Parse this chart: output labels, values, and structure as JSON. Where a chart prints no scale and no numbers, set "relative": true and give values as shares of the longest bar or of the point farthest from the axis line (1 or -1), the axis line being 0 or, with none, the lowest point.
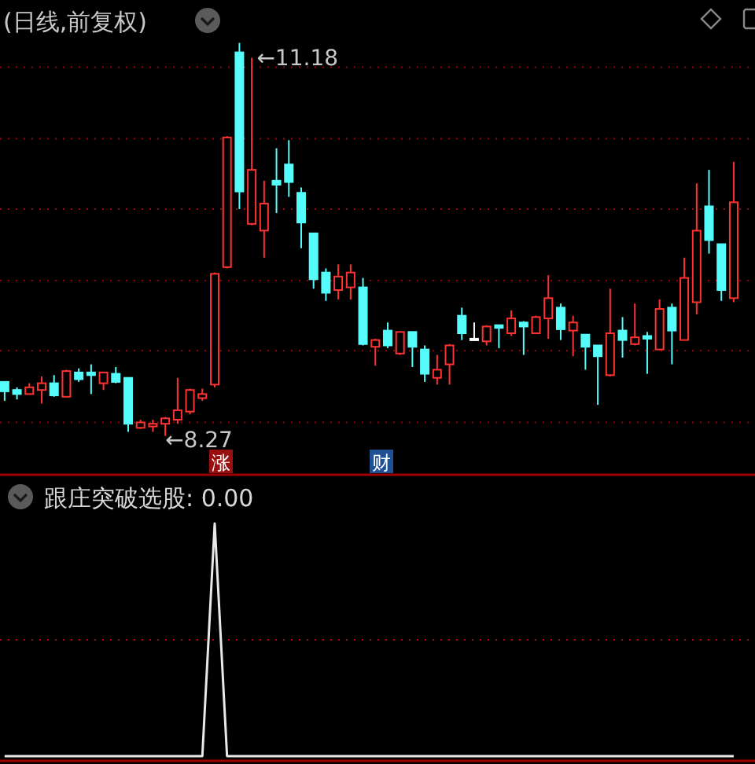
{
  "chart_data": [
    {
      "type": "candlestick",
      "title": "(日线,前复权)",
      "categories": [
        null,
        null,
        null,
        null,
        null,
        null,
        null,
        null,
        null,
        null,
        null,
        null,
        null,
        null,
        null,
        null,
        null,
        null,
        null,
        null,
        null,
        null,
        null,
        null,
        null,
        null,
        null,
        null,
        null,
        null,
        null,
        null,
        null,
        null,
        null,
        null,
        null,
        null,
        null,
        null,
        null,
        null,
        null,
        null,
        null,
        null,
        null,
        null,
        null,
        null,
        null,
        null,
        null,
        null,
        null,
        null,
        null,
        null,
        null,
        null
      ],
      "ohlc": [
        [
          8.67,
          8.67,
          8.53,
          8.6
        ],
        [
          8.61,
          8.63,
          8.54,
          8.58
        ],
        [
          8.58,
          8.66,
          8.58,
          8.63
        ],
        [
          8.61,
          8.71,
          8.51,
          8.66
        ],
        [
          8.66,
          8.72,
          8.56,
          8.57
        ],
        [
          8.56,
          8.76,
          8.56,
          8.75
        ],
        [
          8.74,
          8.77,
          8.67,
          8.69
        ],
        [
          8.74,
          8.8,
          8.58,
          8.72
        ],
        [
          8.66,
          8.74,
          8.61,
          8.74
        ],
        [
          8.73,
          8.78,
          8.66,
          8.67
        ],
        [
          8.7,
          8.7,
          8.3,
          8.36
        ],
        [
          8.33,
          8.39,
          8.32,
          8.37
        ],
        [
          8.34,
          8.39,
          8.3,
          8.36
        ],
        [
          8.36,
          8.41,
          8.27,
          8.4
        ],
        [
          8.39,
          8.7,
          8.36,
          8.46
        ],
        [
          8.45,
          8.62,
          8.43,
          8.61
        ],
        [
          8.55,
          8.62,
          8.53,
          8.58
        ],
        [
          8.65,
          9.48,
          8.63,
          9.47
        ],
        [
          9.52,
          10.49,
          9.51,
          10.48
        ],
        [
          11.11,
          11.18,
          9.95,
          10.08
        ],
        [
          9.84,
          11.07,
          9.83,
          10.24
        ],
        [
          9.79,
          10.16,
          9.59,
          9.99
        ],
        [
          10.16,
          10.4,
          9.92,
          10.13
        ],
        [
          10.28,
          10.46,
          10.04,
          10.15
        ],
        [
          10.07,
          10.11,
          9.66,
          9.85
        ],
        [
          9.77,
          9.77,
          9.36,
          9.43
        ],
        [
          9.48,
          9.51,
          9.27,
          9.33
        ],
        [
          9.35,
          9.54,
          9.28,
          9.45
        ],
        [
          9.37,
          9.54,
          9.28,
          9.48
        ],
        [
          9.37,
          9.44,
          8.94,
          8.95
        ],
        [
          8.93,
          8.99,
          8.79,
          8.98
        ],
        [
          9.05,
          9.11,
          8.92,
          8.94
        ],
        [
          8.88,
          9.04,
          8.87,
          9.04
        ],
        [
          9.04,
          9.04,
          8.78,
          8.93
        ],
        [
          8.91,
          8.94,
          8.67,
          8.73
        ],
        [
          8.7,
          8.87,
          8.65,
          8.76
        ],
        [
          8.8,
          8.95,
          8.65,
          8.94
        ],
        [
          9.16,
          9.22,
          8.98,
          9.03
        ],
        [
          8.99,
          9.11,
          8.98,
          8.99
        ],
        [
          8.97,
          9.09,
          8.94,
          9.08
        ],
        [
          9.09,
          9.09,
          8.92,
          9.07
        ],
        [
          9.03,
          9.2,
          9.01,
          9.14
        ],
        [
          9.11,
          9.12,
          8.87,
          9.08
        ],
        [
          9.03,
          9.16,
          9.03,
          9.15
        ],
        [
          9.14,
          9.46,
          8.99,
          9.29
        ],
        [
          9.22,
          9.25,
          8.98,
          9.06
        ],
        [
          9.05,
          9.16,
          8.86,
          9.11
        ],
        [
          9.02,
          9.02,
          8.76,
          8.93
        ],
        [
          8.94,
          8.94,
          8.5,
          8.86
        ],
        [
          8.72,
          9.36,
          8.71,
          9.03
        ],
        [
          9.05,
          9.15,
          8.85,
          8.98
        ],
        [
          8.95,
          9.25,
          8.94,
          9.0
        ],
        [
          9.01,
          9.04,
          8.73,
          8.99
        ],
        [
          8.91,
          9.28,
          8.91,
          9.21
        ],
        [
          9.22,
          9.25,
          8.8,
          9.05
        ],
        [
          8.98,
          9.59,
          8.98,
          9.44
        ],
        [
          9.26,
          10.14,
          9.17,
          9.79
        ],
        [
          9.97,
          10.24,
          9.62,
          9.72
        ],
        [
          9.69,
          9.69,
          9.27,
          9.35
        ],
        [
          9.29,
          10.3,
          9.26,
          10.0
        ]
      ],
      "colors": [
        "#54fcfc",
        "#54fcfc",
        "#ff3232",
        "#ff3232",
        "#54fcfc",
        "#ff3232",
        "#54fcfc",
        "#54fcfc",
        "#ff3232",
        "#54fcfc",
        "#54fcfc",
        "#ff3232",
        "#ff3232",
        "#ff3232",
        "#ff3232",
        "#ff3232",
        "#ff3232",
        "#ff3232",
        "#ff3232",
        "#54fcfc",
        "#ff3232",
        "#ff3232",
        "#54fcfc",
        "#54fcfc",
        "#54fcfc",
        "#54fcfc",
        "#54fcfc",
        "#ff3232",
        "#ff3232",
        "#54fcfc",
        "#ff3232",
        "#54fcfc",
        "#ff3232",
        "#54fcfc",
        "#54fcfc",
        "#ff3232",
        "#ff3232",
        "#54fcfc",
        "#ffffff",
        "#ff3232",
        "#54fcfc",
        "#ff3232",
        "#54fcfc",
        "#ff3232",
        "#ff3232",
        "#54fcfc",
        "#ff3232",
        "#54fcfc",
        "#54fcfc",
        "#ff3232",
        "#54fcfc",
        "#ff3232",
        "#54fcfc",
        "#ff3232",
        "#54fcfc",
        "#ff3232",
        "#ff3232",
        "#54fcfc",
        "#54fcfc",
        "#ff3232"
      ],
      "yticks": [
        {
          "value": 8.37,
          "label": null
        },
        {
          "value": 8.9,
          "label": null
        },
        {
          "value": 9.42,
          "label": null
        },
        {
          "value": 9.95,
          "label": null
        },
        {
          "value": 10.47,
          "label": null
        },
        {
          "value": 11.0,
          "label": null
        }
      ],
      "grid": "y",
      "annotations": [
        "←11.18",
        "←8.27",
        "涨",
        "财"
      ]
    },
    {
      "type": "line",
      "title": "跟庄突破选股: 0.00",
      "relative": true,
      "categories": [
        null,
        null,
        null,
        null,
        null,
        null,
        null,
        null,
        null,
        null,
        null,
        null,
        null,
        null,
        null,
        null,
        null,
        null,
        null,
        null,
        null,
        null,
        null,
        null,
        null,
        null,
        null,
        null,
        null,
        null,
        null,
        null,
        null,
        null,
        null,
        null,
        null,
        null,
        null,
        null,
        null,
        null,
        null,
        null,
        null,
        null,
        null,
        null,
        null,
        null,
        null,
        null,
        null,
        null,
        null,
        null,
        null,
        null,
        null,
        null
      ],
      "series": [
        {
          "color": "#e8e8e8",
          "values": [
            0,
            0,
            0,
            0,
            0,
            0,
            0,
            0,
            0,
            0,
            0,
            0,
            0,
            0,
            0,
            0,
            0,
            1,
            0,
            0,
            0,
            0,
            0,
            0,
            0,
            0,
            0,
            0,
            0,
            0,
            0,
            0,
            0,
            0,
            0,
            0,
            0,
            0,
            0,
            0,
            0,
            0,
            0,
            0,
            0,
            0,
            0,
            0,
            0,
            0,
            0,
            0,
            0,
            0,
            0,
            0,
            0,
            0,
            0,
            0
          ]
        }
      ],
      "ref_lines": [
        {
          "axis": "y",
          "value": 0.5,
          "color": "#b00000",
          "line_style": "dotted"
        }
      ]
    }
  ]
}
